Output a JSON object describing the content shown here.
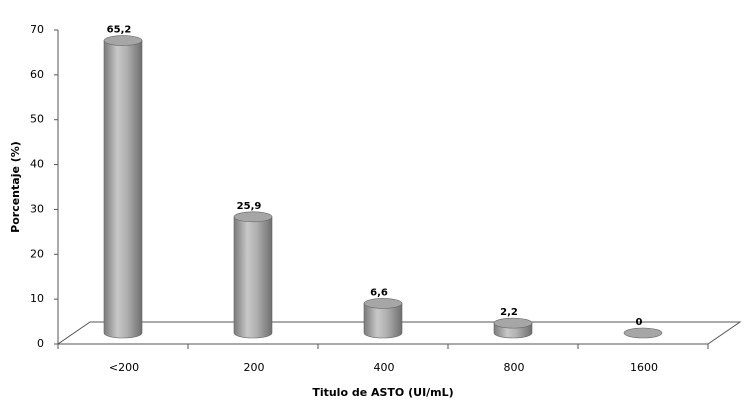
{
  "chart_data": {
    "type": "bar",
    "style": "cylinder-3d",
    "x_label": "Titulo de ASTO (UI/mL)",
    "y_label": "Porcentaje (%)",
    "categories": [
      "<200",
      "200",
      "400",
      "800",
      "1600"
    ],
    "values": [
      65.2,
      25.9,
      6.6,
      2.2,
      0
    ],
    "value_labels": [
      "65,2",
      "25,9",
      "6,6",
      "2,2",
      "0"
    ],
    "color": "#a6a6a6",
    "ylim": [
      0,
      70
    ],
    "yticks": [
      0,
      10,
      20,
      30,
      40,
      50,
      60,
      70
    ]
  }
}
